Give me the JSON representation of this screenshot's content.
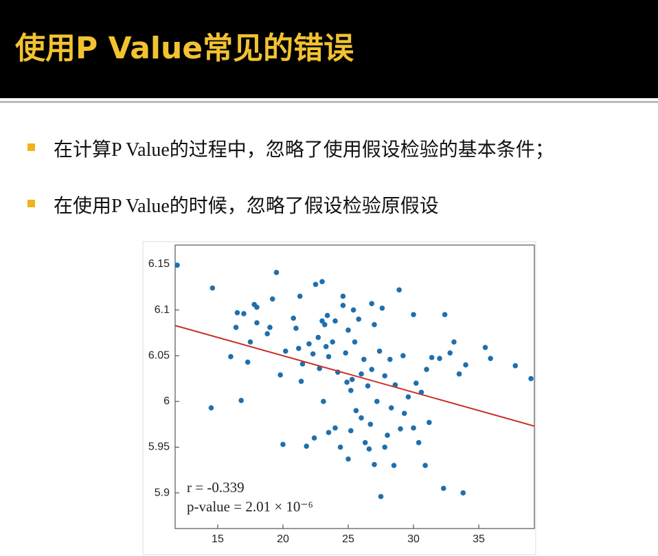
{
  "header": {
    "title": "使用P Value常见的错误"
  },
  "bullets": [
    "在计算P Value的过程中，忽略了使用假设检验的基本条件；",
    "在使用P Value的时候，忽略了假设检验原假设"
  ],
  "chart_data": {
    "type": "scatter",
    "color": "#1f6fad",
    "x": [
      11.9,
      14.6,
      14.5,
      16.0,
      16.4,
      16.5,
      16.8,
      17.0,
      17.3,
      17.5,
      17.8,
      18.0,
      18.0,
      18.8,
      19.0,
      19.2,
      19.5,
      19.8,
      20.0,
      20.2,
      20.8,
      21.0,
      21.2,
      21.3,
      21.4,
      21.5,
      21.8,
      22.0,
      22.3,
      22.4,
      22.5,
      22.7,
      22.8,
      23.0,
      23.0,
      23.1,
      23.2,
      23.3,
      23.4,
      23.5,
      23.5,
      23.8,
      24.0,
      24.2,
      24.4,
      24.6,
      24.6,
      24.8,
      24.9,
      25.0,
      25.0,
      25.2,
      25.2,
      25.4,
      25.5,
      25.6,
      25.8,
      26.0,
      26.0,
      26.2,
      26.3,
      26.5,
      26.7,
      26.8,
      26.8,
      27.0,
      27.0,
      27.2,
      27.4,
      27.5,
      27.6,
      27.8,
      28.0,
      28.2,
      28.3,
      28.5,
      28.6,
      28.9,
      29.0,
      29.2,
      29.3,
      29.6,
      30.0,
      30.0,
      30.2,
      30.4,
      30.6,
      30.9,
      31.2,
      31.0,
      31.4,
      32.0,
      32.3,
      32.4,
      32.8,
      33.1,
      33.5,
      33.8,
      34.0,
      35.5,
      35.9,
      37.8,
      39.0,
      26.6,
      24.0,
      25.3,
      27.8
    ],
    "values": [
      6.149,
      6.124,
      5.993,
      6.049,
      6.081,
      6.097,
      6.001,
      6.096,
      6.043,
      6.065,
      6.106,
      6.103,
      6.086,
      6.074,
      6.081,
      6.112,
      6.141,
      6.029,
      5.953,
      6.055,
      6.091,
      6.08,
      6.058,
      6.115,
      6.022,
      6.041,
      5.951,
      6.063,
      6.052,
      5.96,
      6.128,
      6.07,
      6.036,
      6.131,
      6.088,
      6.0,
      6.084,
      6.06,
      6.094,
      6.049,
      5.966,
      6.065,
      5.971,
      6.032,
      5.95,
      6.115,
      6.105,
      6.053,
      6.021,
      6.078,
      5.937,
      6.012,
      5.968,
      6.1,
      6.065,
      5.99,
      6.09,
      5.982,
      6.03,
      6.046,
      5.955,
      6.017,
      5.975,
      6.107,
      6.035,
      6.084,
      5.931,
      6.0,
      6.055,
      5.896,
      6.102,
      6.028,
      5.963,
      6.046,
      5.993,
      5.93,
      6.018,
      6.122,
      5.97,
      6.05,
      5.987,
      6.005,
      6.095,
      5.971,
      6.02,
      5.955,
      6.01,
      5.93,
      5.977,
      6.035,
      6.048,
      6.047,
      5.905,
      6.095,
      6.053,
      6.065,
      6.03,
      5.9,
      6.04,
      6.059,
      6.047,
      6.039,
      6.025,
      5.948,
      6.088,
      6.024,
      5.95
    ],
    "xlim": [
      11.74,
      39.26
    ],
    "ylim": [
      5.861,
      6.171
    ],
    "xticks": [
      15,
      20,
      25,
      30,
      35
    ],
    "yticks": [
      6.15,
      6.1,
      6.05,
      6,
      5.95,
      5.9
    ],
    "fit": {
      "color": "#c8302a",
      "x": [
        11.74,
        39.26
      ],
      "y": [
        6.083,
        5.973
      ]
    },
    "annotations": [
      "r = -0.339",
      "p-value = 2.01 × 10⁻⁶"
    ]
  }
}
